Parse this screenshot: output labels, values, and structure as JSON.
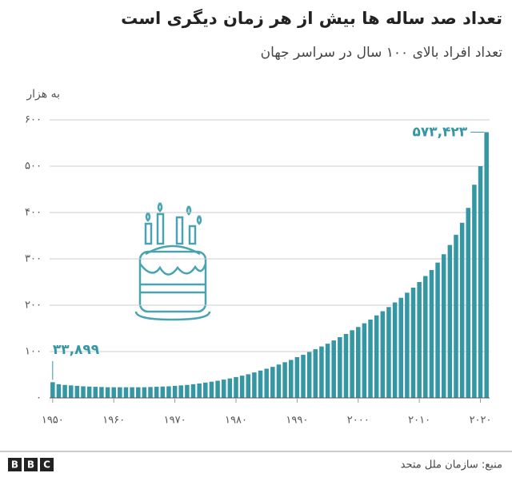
{
  "chart_data": {
    "type": "bar",
    "title": "تعداد صد ساله ها بیش از هر زمان دیگری است",
    "subtitle": "تعداد افراد بالای ۱۰۰ سال در سراسر جهان",
    "y_label": "به هزار",
    "source": "منبع: سازمان ملل متحد",
    "logo": [
      "B",
      "B",
      "C"
    ],
    "color": "#3597a3",
    "x": [
      1950,
      1951,
      1952,
      1953,
      1954,
      1955,
      1956,
      1957,
      1958,
      1959,
      1960,
      1961,
      1962,
      1963,
      1964,
      1965,
      1966,
      1967,
      1968,
      1969,
      1970,
      1971,
      1972,
      1973,
      1974,
      1975,
      1976,
      1977,
      1978,
      1979,
      1980,
      1981,
      1982,
      1983,
      1984,
      1985,
      1986,
      1987,
      1988,
      1989,
      1990,
      1991,
      1992,
      1993,
      1994,
      1995,
      1996,
      1997,
      1998,
      1999,
      2000,
      2001,
      2002,
      2003,
      2004,
      2005,
      2006,
      2007,
      2008,
      2009,
      2010,
      2011,
      2012,
      2013,
      2014,
      2015,
      2016,
      2017,
      2018,
      2019,
      2020,
      2021
    ],
    "values": [
      33.899,
      29.5,
      28,
      27,
      26,
      25,
      24.5,
      24,
      23.5,
      23,
      23,
      23,
      23,
      23,
      23,
      23,
      23.5,
      24,
      24.5,
      25,
      26,
      27,
      28,
      29.5,
      31,
      33,
      35,
      37,
      39.5,
      42,
      45,
      48,
      51,
      55,
      59,
      63,
      67,
      72,
      77,
      82,
      88,
      93,
      99,
      105,
      111,
      117,
      124,
      131,
      138,
      146,
      153,
      161,
      169,
      178,
      187,
      196,
      206,
      216,
      227,
      238,
      250,
      263,
      276,
      292,
      310,
      330,
      352,
      378,
      410,
      460,
      500,
      573.423
    ],
    "value_labels": [
      "۳۳,۸۹۹",
      null,
      null,
      null,
      null,
      null,
      null,
      null,
      null,
      null,
      null,
      null,
      null,
      null,
      null,
      null,
      null,
      null,
      null,
      null,
      null,
      null,
      null,
      null,
      null,
      null,
      null,
      null,
      null,
      null,
      null,
      null,
      null,
      null,
      null,
      null,
      null,
      null,
      null,
      null,
      null,
      null,
      null,
      null,
      null,
      null,
      null,
      null,
      null,
      null,
      null,
      null,
      null,
      null,
      null,
      null,
      null,
      null,
      null,
      null,
      null,
      null,
      null,
      null,
      null,
      null,
      null,
      null,
      null,
      null,
      null,
      "۵۷۳,۴۲۳"
    ],
    "xlim": [
      1949.5,
      2021.5
    ],
    "xticks": [
      {
        "value": 1950,
        "label": "۱۹۵۰"
      },
      {
        "value": 1960,
        "label": "۱۹۶۰"
      },
      {
        "value": 1970,
        "label": "۱۹۷۰"
      },
      {
        "value": 1980,
        "label": "۱۹۸۰"
      },
      {
        "value": 1990,
        "label": "۱۹۹۰"
      },
      {
        "value": 2000,
        "label": "۲۰۰۰"
      },
      {
        "value": 2010,
        "label": "۲۰۱۰"
      },
      {
        "value": 2020,
        "label": "۲۰۲۰"
      }
    ],
    "ylim": [
      0,
      600
    ],
    "yticks": [
      {
        "value": 0,
        "label": "۰"
      },
      {
        "value": 100,
        "label": "۱۰۰"
      },
      {
        "value": 200,
        "label": "۲۰۰"
      },
      {
        "value": 300,
        "label": "۳۰۰"
      },
      {
        "value": 400,
        "label": "۴۰۰"
      },
      {
        "value": 500,
        "label": "۵۰۰"
      },
      {
        "value": 600,
        "label": "۶۰۰"
      }
    ],
    "grid": true
  }
}
